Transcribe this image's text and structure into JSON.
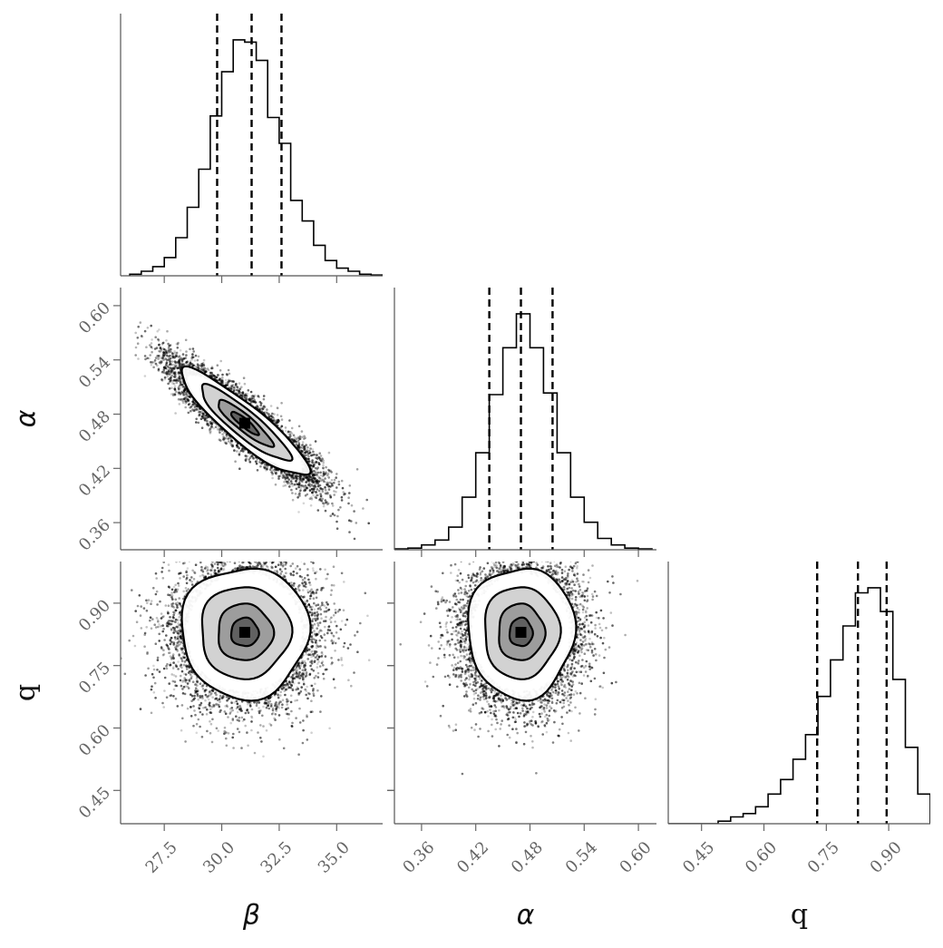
{
  "chart_data": {
    "type": "corner",
    "parameters": [
      {
        "key": "beta",
        "label": "β",
        "range": [
          25.6,
          37.0
        ],
        "ticks": [
          "27.5",
          "30.0",
          "32.5",
          "35.0"
        ],
        "tick_values": [
          27.5,
          30.0,
          32.5,
          35.0
        ]
      },
      {
        "key": "alpha",
        "label": "α",
        "range": [
          0.33,
          0.62
        ],
        "ticks": [
          "0.36",
          "0.42",
          "0.48",
          "0.54",
          "0.60"
        ],
        "tick_values": [
          0.36,
          0.42,
          0.48,
          0.54,
          0.6
        ]
      },
      {
        "key": "q",
        "label": "q",
        "range": [
          0.37,
          1.0
        ],
        "ticks": [
          "0.45",
          "0.60",
          "0.75",
          "0.90"
        ],
        "tick_values": [
          0.45,
          0.6,
          0.75,
          0.9
        ]
      }
    ],
    "histograms": {
      "beta": {
        "edges_start": 26.0,
        "bin_width": 0.5,
        "counts": [
          2,
          6,
          12,
          24,
          50,
          90,
          140,
          210,
          268,
          310,
          307,
          283,
          208,
          174,
          99,
          72,
          40,
          20,
          10,
          6,
          2,
          1
        ],
        "quantiles": [
          29.8,
          31.3,
          32.6
        ]
      },
      "alpha": {
        "edges_start": 0.33,
        "bin_width": 0.015,
        "counts": [
          1,
          2,
          6,
          12,
          28,
          65,
          120,
          192,
          250,
          292,
          250,
          194,
          120,
          65,
          34,
          14,
          6,
          2,
          1
        ],
        "quantiles": [
          0.435,
          0.47,
          0.505
        ]
      },
      "q": {
        "edges_start": 0.37,
        "bin_width": 0.03,
        "counts": [
          0,
          0,
          0,
          0,
          3,
          8,
          12,
          20,
          35,
          52,
          76,
          105,
          150,
          193,
          233,
          272,
          278,
          250,
          170,
          90,
          35
        ],
        "quantiles": [
          0.728,
          0.826,
          0.895
        ]
      }
    },
    "joint": [
      {
        "x": "beta",
        "y": "alpha",
        "mean": [
          31.0,
          0.47
        ],
        "sd": [
          1.5,
          0.032
        ],
        "rho": -0.9
      },
      {
        "x": "beta",
        "y": "q",
        "mean": [
          31.0,
          0.83
        ],
        "sd": [
          1.5,
          0.085
        ],
        "rho": 0.0
      },
      {
        "x": "alpha",
        "y": "q",
        "mean": [
          0.47,
          0.83
        ],
        "sd": [
          0.032,
          0.085
        ],
        "rho": 0.0
      }
    ],
    "line_color": "#000000",
    "tick_color": "#666666",
    "scatter_color": "#000000"
  }
}
